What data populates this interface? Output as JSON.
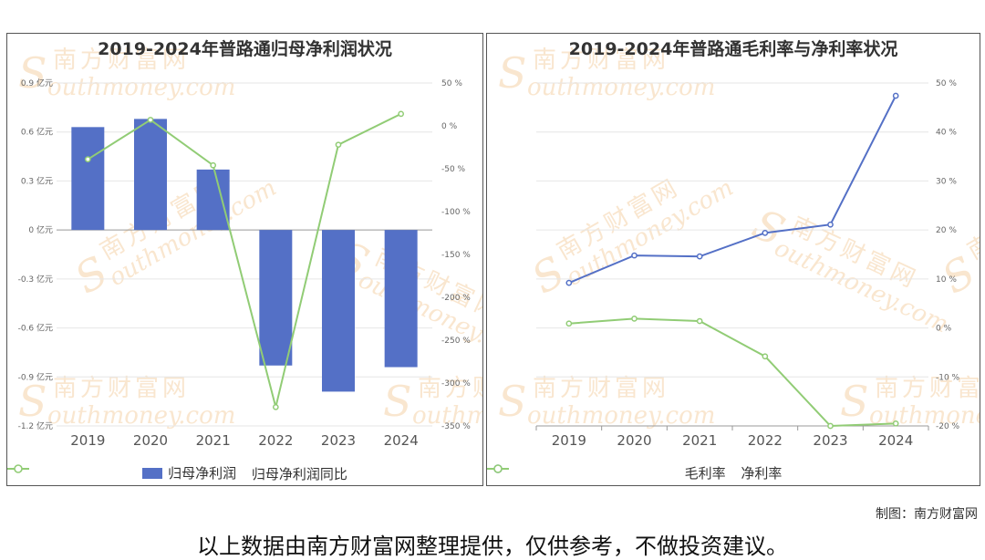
{
  "colors": {
    "bar": "#5470c6",
    "blue_line": "#5470c6",
    "green_line": "#91cc75",
    "watermark": "#f5d2a8",
    "grid": "#e6e6e6",
    "axis_text": "#666666"
  },
  "watermark": {
    "cn": "南方财富网",
    "en": "outhmoney.com",
    "s": "S"
  },
  "credit": "制图：南方财富网",
  "footer_note": "以上数据由南方财富网整理提供，仅供参考，不做投资建议。",
  "chart_data": [
    {
      "type": "bar",
      "title": "2019-2024年普路通归母净利润状况",
      "categories": [
        "2019",
        "2020",
        "2021",
        "2022",
        "2023",
        "2024"
      ],
      "series": [
        {
          "name": "归母净利润",
          "type": "bar",
          "axis": "left",
          "values": [
            0.63,
            0.68,
            0.37,
            -0.83,
            -0.99,
            -0.84
          ]
        },
        {
          "name": "归母净利润同比",
          "type": "line",
          "axis": "right",
          "values": [
            -39,
            7,
            -46,
            -328,
            -22,
            14
          ]
        }
      ],
      "y_left": {
        "min": -1.2,
        "max": 0.9,
        "ticks": [
          0.9,
          0.6,
          0.3,
          0,
          -0.3,
          -0.6,
          -0.9,
          -1.2
        ],
        "tick_labels": [
          "0.9 亿元",
          "0.6 亿元",
          "0.3 亿元",
          "0 亿元",
          "-0.3 亿元",
          "-0.6 亿元",
          "-0.9 亿元",
          "-1.2 亿元"
        ]
      },
      "y_right": {
        "min": -350,
        "max": 50,
        "ticks": [
          50,
          0,
          -50,
          -100,
          -150,
          -200,
          -250,
          -300,
          -350
        ],
        "tick_labels": [
          "50 %",
          "0 %",
          "-50 %",
          "-100 %",
          "-150 %",
          "-200 %",
          "-250 %",
          "-300 %",
          "-350 %"
        ]
      },
      "grid": true,
      "legend_position": "bottom"
    },
    {
      "type": "line",
      "title": "2019-2024年普路通毛利率与净利率状况",
      "categories": [
        "2019",
        "2020",
        "2021",
        "2022",
        "2023",
        "2024"
      ],
      "series": [
        {
          "name": "毛利率",
          "values": [
            9.2,
            14.8,
            14.6,
            19.4,
            21.1,
            47.4
          ]
        },
        {
          "name": "净利率",
          "values": [
            0.9,
            1.9,
            1.4,
            -5.8,
            -20,
            -19.5
          ]
        }
      ],
      "y_right": {
        "min": -20,
        "max": 50,
        "ticks": [
          50,
          40,
          30,
          20,
          10,
          0,
          -10,
          -20
        ],
        "tick_labels": [
          "50 %",
          "40 %",
          "30 %",
          "20 %",
          "10 %",
          "0 %",
          "-10 %",
          "-20 %"
        ]
      },
      "grid": true,
      "legend_position": "bottom"
    }
  ]
}
